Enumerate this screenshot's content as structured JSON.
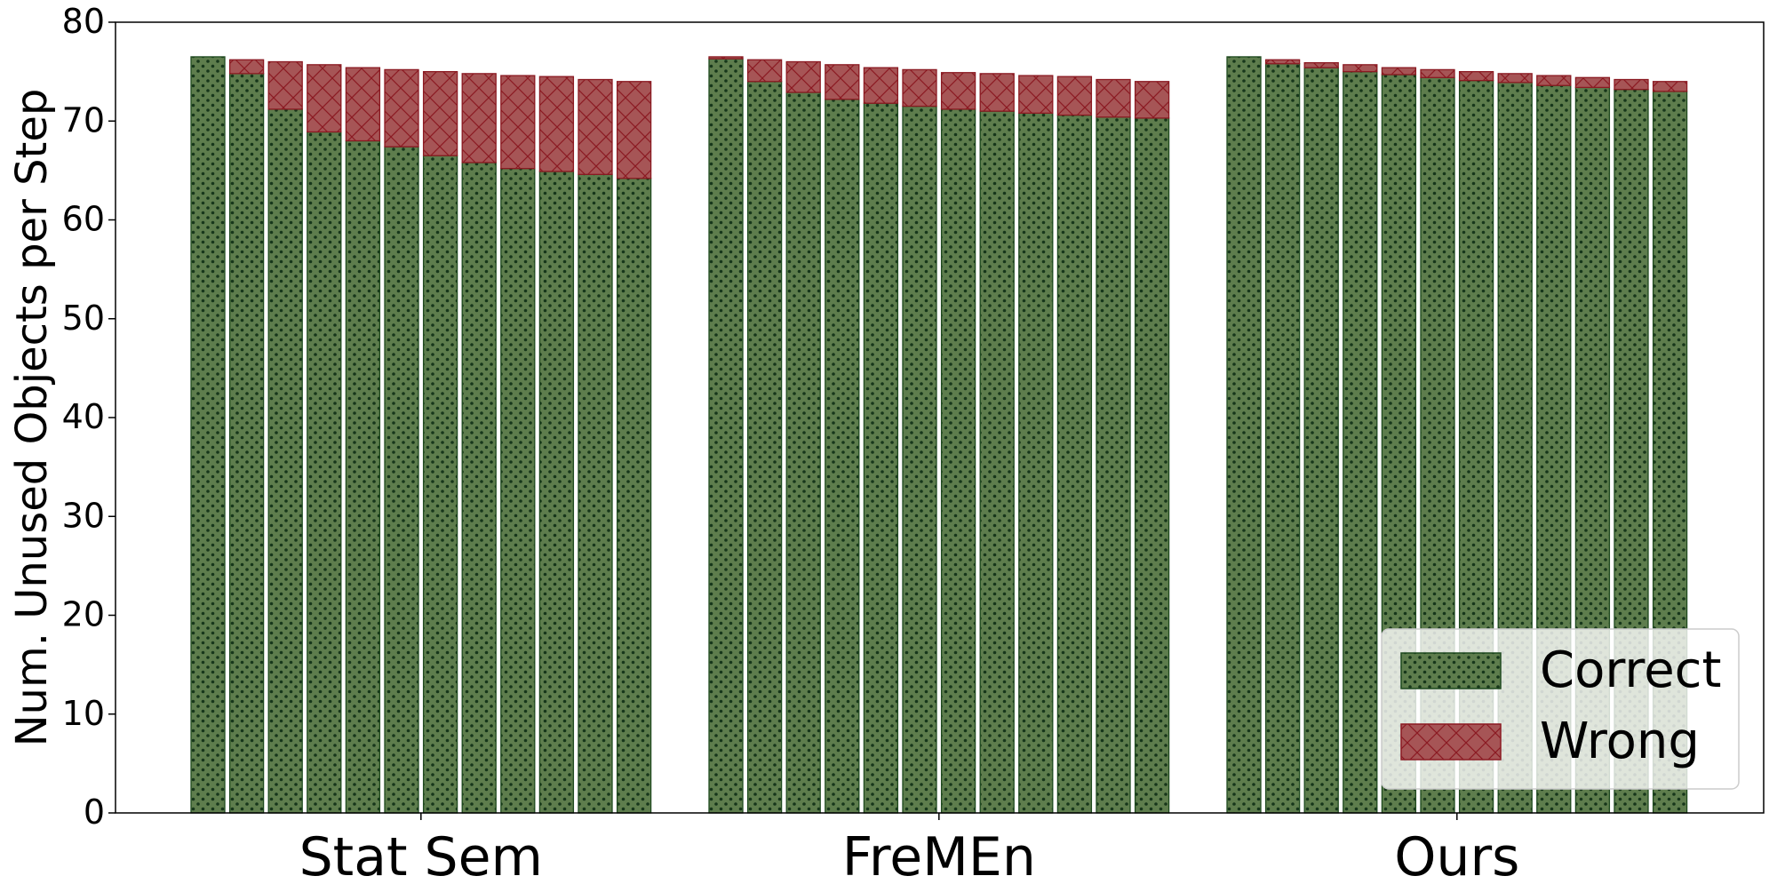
{
  "chart_data": {
    "type": "bar",
    "stacked": true,
    "ylabel": "Num. Unused Objects per Step",
    "xlabel": "",
    "ylim": [
      0,
      80
    ],
    "yticks": [
      0,
      10,
      20,
      30,
      40,
      50,
      60,
      70,
      80
    ],
    "grid": false,
    "legend_position": "bottom-right",
    "colors": {
      "correct_fill": "#5e7d4d",
      "correct_edge": "#1f4a1f",
      "correct_dots": "#16361a",
      "wrong_fill": "#a65556",
      "wrong_edge": "#8b1a22",
      "wrong_hatch": "#8b1a22"
    },
    "legend": [
      {
        "key": "correct",
        "label": "Correct",
        "pattern": "dots"
      },
      {
        "key": "wrong",
        "label": "Wrong",
        "pattern": "crosshatch"
      }
    ],
    "groups": [
      {
        "label": "Stat Sem",
        "correct": [
          76.5,
          74.8,
          71.2,
          68.9,
          68.0,
          67.4,
          66.5,
          65.8,
          65.2,
          64.9,
          64.6,
          64.2
        ],
        "wrong": [
          0.0,
          1.4,
          4.8,
          6.8,
          7.4,
          7.8,
          8.5,
          9.0,
          9.4,
          9.6,
          9.6,
          9.8
        ]
      },
      {
        "label": "FreMEn",
        "correct": [
          76.3,
          74.0,
          72.9,
          72.2,
          71.8,
          71.5,
          71.2,
          71.0,
          70.8,
          70.6,
          70.4,
          70.3
        ],
        "wrong": [
          0.2,
          2.2,
          3.1,
          3.5,
          3.6,
          3.7,
          3.7,
          3.8,
          3.8,
          3.9,
          3.8,
          3.7
        ]
      },
      {
        "label": "Ours",
        "correct": [
          76.5,
          75.8,
          75.4,
          75.0,
          74.7,
          74.4,
          74.1,
          73.9,
          73.6,
          73.4,
          73.2,
          73.0
        ],
        "wrong": [
          0.0,
          0.4,
          0.5,
          0.7,
          0.7,
          0.8,
          0.9,
          0.9,
          1.0,
          1.0,
          1.0,
          1.0
        ]
      }
    ]
  }
}
